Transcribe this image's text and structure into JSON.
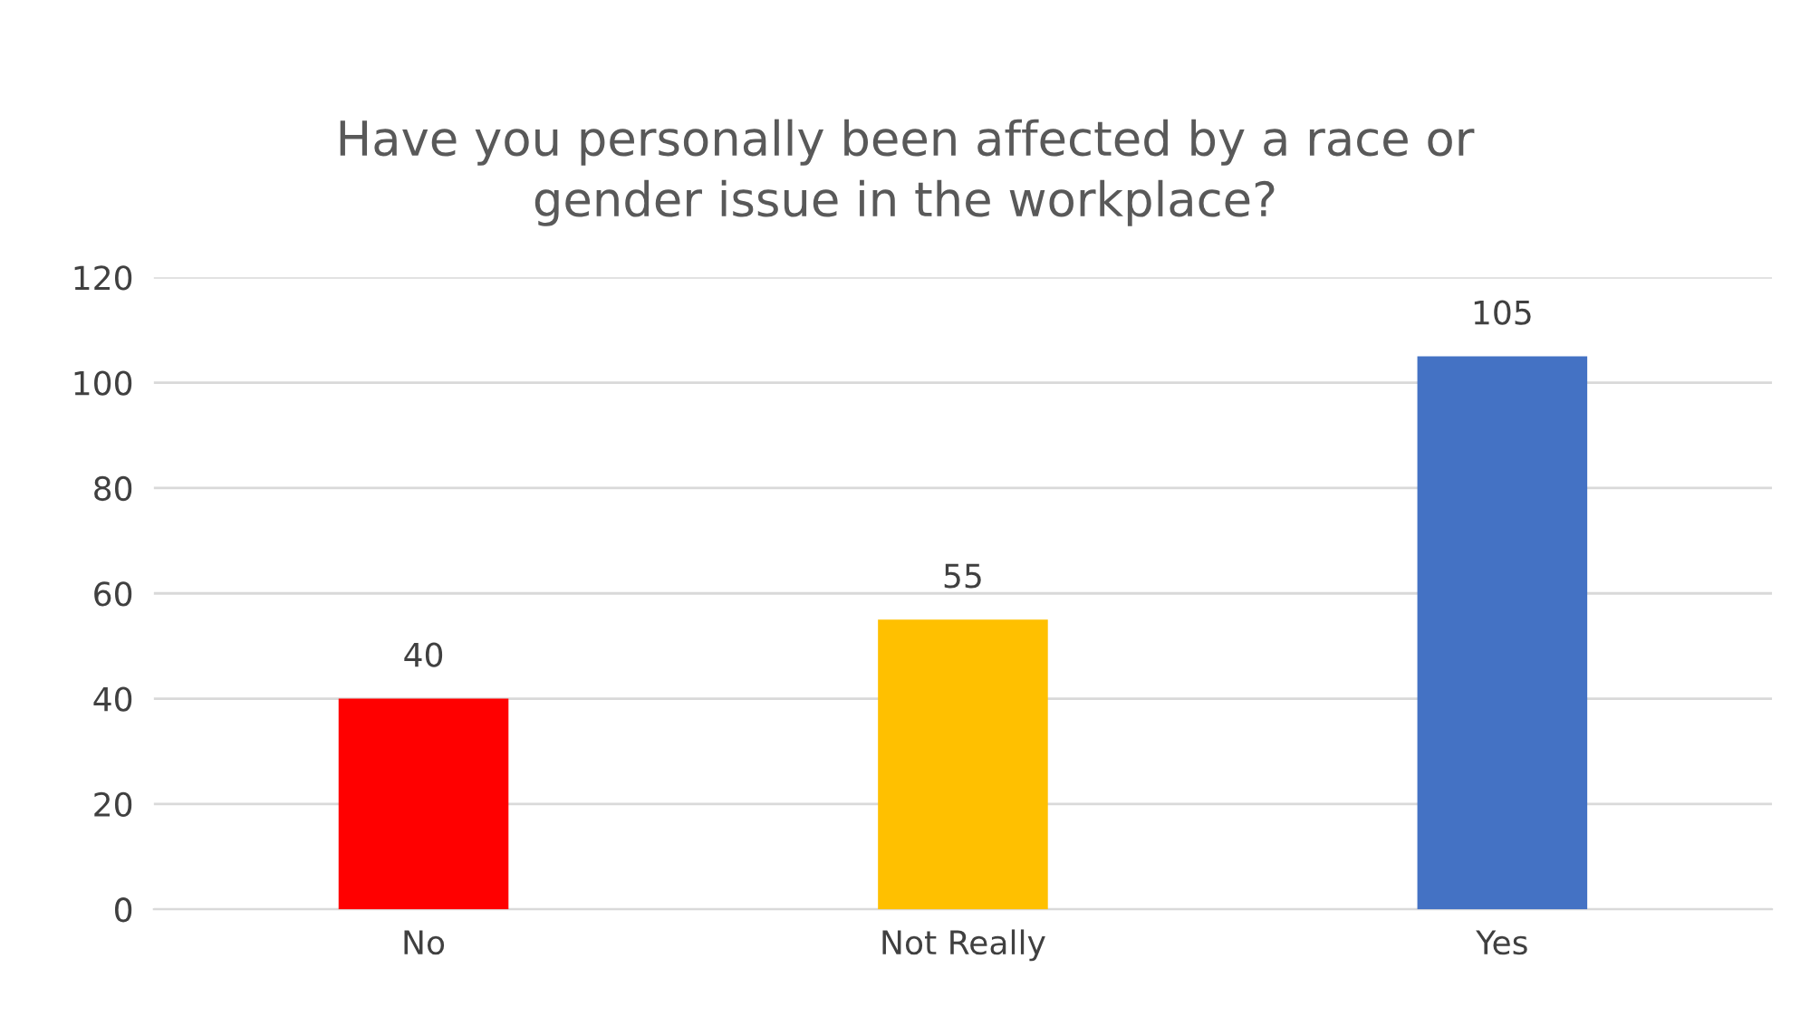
{
  "chart_data": {
    "type": "bar",
    "title": "Have you personally been affected by a race or\ngender issue in the workplace?",
    "categories": [
      "No",
      "Not Really",
      "Yes"
    ],
    "values": [
      40,
      55,
      105
    ],
    "colors": [
      "#ff0000",
      "#ffc000",
      "#4472c4"
    ],
    "ylim": [
      0,
      120
    ],
    "yticks": [
      0,
      20,
      40,
      60,
      80,
      100,
      120
    ],
    "grid": "y",
    "data_labels": true
  }
}
